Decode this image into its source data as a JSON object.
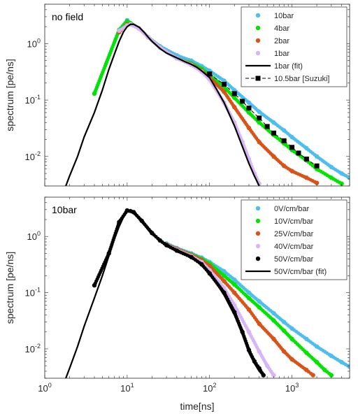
{
  "chart_data": [
    {
      "type": "scatter",
      "annotation": "no field",
      "xlabel": "",
      "ylabel": "spectrum [pe/ns]",
      "xscale": "log",
      "yscale": "log",
      "xlim": [
        1,
        5000
      ],
      "ylim": [
        0.003,
        5
      ],
      "legend_position": "top-right",
      "yticks": [
        {
          "v": 0.01,
          "base": "10",
          "exp": "-2"
        },
        {
          "v": 0.1,
          "base": "10",
          "exp": "-1"
        },
        {
          "v": 1,
          "base": "10",
          "exp": "0"
        }
      ],
      "series": [
        {
          "name": "10bar",
          "kind": "dots",
          "color": "#4dbeee",
          "points": [
            [
              4,
              0.13
            ],
            [
              8,
              1.75
            ],
            [
              10,
              2.6
            ],
            [
              11,
              2.3
            ],
            [
              14,
              1.85
            ],
            [
              18,
              1.3
            ],
            [
              25,
              0.9
            ],
            [
              40,
              0.62
            ],
            [
              60,
              0.5
            ],
            [
              80,
              0.4
            ],
            [
              100,
              0.33
            ],
            [
              150,
              0.22
            ],
            [
              200,
              0.15
            ],
            [
              300,
              0.09
            ],
            [
              400,
              0.062
            ],
            [
              600,
              0.04
            ],
            [
              800,
              0.029
            ],
            [
              1000,
              0.022
            ],
            [
              1500,
              0.014
            ],
            [
              2000,
              0.01
            ],
            [
              3000,
              0.0065
            ],
            [
              4000,
              0.005
            ],
            [
              5000,
              0.0042
            ]
          ]
        },
        {
          "name": "4bar",
          "kind": "dots",
          "color": "#00e400",
          "points": [
            [
              4,
              0.13
            ],
            [
              8,
              1.75
            ],
            [
              10,
              2.5
            ],
            [
              11,
              2.3
            ],
            [
              14,
              1.85
            ],
            [
              18,
              1.3
            ],
            [
              25,
              0.85
            ],
            [
              40,
              0.55
            ],
            [
              60,
              0.45
            ],
            [
              80,
              0.36
            ],
            [
              100,
              0.28
            ],
            [
              150,
              0.17
            ],
            [
              200,
              0.11
            ],
            [
              300,
              0.06
            ],
            [
              400,
              0.04
            ],
            [
              600,
              0.024
            ],
            [
              800,
              0.017
            ],
            [
              1000,
              0.013
            ],
            [
              1500,
              0.0085
            ],
            [
              2000,
              0.006
            ],
            [
              3000,
              0.0042
            ],
            [
              4000,
              0.0033
            ]
          ]
        },
        {
          "name": "2bar",
          "kind": "dots",
          "color": "#d95319",
          "points": [
            [
              8,
              1.6
            ],
            [
              10,
              2.2
            ],
            [
              11,
              2.2
            ],
            [
              14,
              1.85
            ],
            [
              18,
              1.3
            ],
            [
              25,
              0.85
            ],
            [
              40,
              0.55
            ],
            [
              60,
              0.43
            ],
            [
              80,
              0.33
            ],
            [
              100,
              0.25
            ],
            [
              150,
              0.14
            ],
            [
              200,
              0.075
            ],
            [
              300,
              0.032
            ],
            [
              400,
              0.018
            ],
            [
              600,
              0.01
            ],
            [
              800,
              0.0068
            ],
            [
              1000,
              0.0055
            ],
            [
              1500,
              0.0042
            ],
            [
              2000,
              0.0034
            ]
          ]
        },
        {
          "name": "1bar",
          "kind": "dots",
          "color": "#d8b5f5",
          "points": [
            [
              8,
              1.7
            ],
            [
              10,
              2.1
            ],
            [
              11,
              2.2
            ],
            [
              14,
              1.85
            ],
            [
              18,
              1.3
            ],
            [
              25,
              0.85
            ],
            [
              40,
              0.55
            ],
            [
              60,
              0.42
            ],
            [
              80,
              0.32
            ],
            [
              100,
              0.23
            ],
            [
              150,
              0.09
            ],
            [
              200,
              0.04
            ],
            [
              250,
              0.018
            ],
            [
              300,
              0.009
            ],
            [
              350,
              0.005
            ],
            [
              400,
              0.0033
            ]
          ]
        },
        {
          "name": "1bar (fit)",
          "kind": "line",
          "color": "#000000",
          "points": [
            [
              1.8,
              0.003
            ],
            [
              2,
              0.0045
            ],
            [
              2.5,
              0.01
            ],
            [
              3,
              0.022
            ],
            [
              4,
              0.06
            ],
            [
              5,
              0.15
            ],
            [
              6,
              0.35
            ],
            [
              7,
              0.65
            ],
            [
              8,
              1.1
            ],
            [
              9,
              1.6
            ],
            [
              10,
              2.0
            ],
            [
              11,
              2.2
            ],
            [
              12,
              2.2
            ],
            [
              14,
              1.95
            ],
            [
              16,
              1.6
            ],
            [
              18,
              1.3
            ],
            [
              20,
              1.1
            ],
            [
              25,
              0.82
            ],
            [
              30,
              0.68
            ],
            [
              40,
              0.56
            ],
            [
              50,
              0.48
            ],
            [
              60,
              0.43
            ],
            [
              70,
              0.38
            ],
            [
              80,
              0.33
            ],
            [
              100,
              0.25
            ],
            [
              120,
              0.16
            ],
            [
              150,
              0.09
            ],
            [
              200,
              0.035
            ],
            [
              250,
              0.015
            ],
            [
              300,
              0.0075
            ],
            [
              350,
              0.0045
            ],
            [
              400,
              0.003
            ]
          ]
        },
        {
          "name": "10.5bar [Suzuki]",
          "kind": "dashed-squares",
          "color": "#000000",
          "points": [
            [
              100,
              0.29
            ],
            [
              150,
              0.19
            ],
            [
              200,
              0.13
            ],
            [
              250,
              0.095
            ],
            [
              300,
              0.072
            ],
            [
              400,
              0.048
            ],
            [
              500,
              0.034
            ],
            [
              600,
              0.026
            ],
            [
              800,
              0.019
            ],
            [
              1000,
              0.0145
            ],
            [
              1200,
              0.0115
            ],
            [
              1500,
              0.009
            ],
            [
              2000,
              0.0068
            ]
          ]
        }
      ]
    },
    {
      "type": "scatter",
      "annotation": "10bar",
      "xlabel": "time[ns]",
      "ylabel": "spectrum [pe/ns]",
      "xscale": "log",
      "yscale": "log",
      "xlim": [
        1,
        5000
      ],
      "ylim": [
        0.003,
        5
      ],
      "legend_position": "top-right",
      "xticks": [
        {
          "v": 1,
          "base": "10",
          "exp": "0"
        },
        {
          "v": 10,
          "base": "10",
          "exp": "1"
        },
        {
          "v": 100,
          "base": "10",
          "exp": "2"
        },
        {
          "v": 1000,
          "base": "10",
          "exp": "3"
        }
      ],
      "yticks": [
        {
          "v": 0.01,
          "base": "10",
          "exp": "-2"
        },
        {
          "v": 0.1,
          "base": "10",
          "exp": "-1"
        },
        {
          "v": 1,
          "base": "10",
          "exp": "0"
        }
      ],
      "series": [
        {
          "name": "0V/cm/bar",
          "kind": "dots",
          "color": "#4dbeee",
          "points": [
            [
              30,
              0.75
            ],
            [
              40,
              0.62
            ],
            [
              60,
              0.5
            ],
            [
              80,
              0.42
            ],
            [
              100,
              0.35
            ],
            [
              150,
              0.24
            ],
            [
              200,
              0.17
            ],
            [
              300,
              0.1
            ],
            [
              400,
              0.07
            ],
            [
              600,
              0.043
            ],
            [
              800,
              0.03
            ],
            [
              1000,
              0.023
            ],
            [
              1500,
              0.015
            ],
            [
              2000,
              0.011
            ],
            [
              3000,
              0.0075
            ],
            [
              4000,
              0.0058
            ],
            [
              5000,
              0.0048
            ]
          ]
        },
        {
          "name": "10V/cm/bar",
          "kind": "dots",
          "color": "#00e400",
          "points": [
            [
              30,
              0.72
            ],
            [
              40,
              0.6
            ],
            [
              60,
              0.48
            ],
            [
              80,
              0.4
            ],
            [
              100,
              0.33
            ],
            [
              150,
              0.2
            ],
            [
              200,
              0.14
            ],
            [
              300,
              0.08
            ],
            [
              400,
              0.055
            ],
            [
              600,
              0.032
            ],
            [
              800,
              0.021
            ],
            [
              1000,
              0.015
            ],
            [
              1500,
              0.0085
            ],
            [
              2000,
              0.0058
            ],
            [
              2500,
              0.0042
            ],
            [
              3000,
              0.0034
            ]
          ]
        },
        {
          "name": "25V/cm/bar",
          "kind": "dots",
          "color": "#d95319",
          "points": [
            [
              30,
              0.72
            ],
            [
              40,
              0.6
            ],
            [
              60,
              0.47
            ],
            [
              80,
              0.38
            ],
            [
              100,
              0.3
            ],
            [
              150,
              0.16
            ],
            [
              200,
              0.1
            ],
            [
              300,
              0.05
            ],
            [
              400,
              0.028
            ],
            [
              600,
              0.015
            ],
            [
              800,
              0.009
            ],
            [
              1000,
              0.0065
            ],
            [
              1500,
              0.0042
            ],
            [
              1800,
              0.0034
            ]
          ]
        },
        {
          "name": "40V/cm/bar",
          "kind": "dots",
          "color": "#d8b5f5",
          "points": [
            [
              30,
              0.7
            ],
            [
              40,
              0.58
            ],
            [
              60,
              0.45
            ],
            [
              80,
              0.35
            ],
            [
              100,
              0.25
            ],
            [
              150,
              0.12
            ],
            [
              200,
              0.06
            ],
            [
              300,
              0.02
            ],
            [
              400,
              0.009
            ],
            [
              500,
              0.005
            ],
            [
              600,
              0.0034
            ]
          ]
        },
        {
          "name": "50V/cm/bar",
          "kind": "dots",
          "color": "#000000",
          "points": [
            [
              4,
              0.135
            ],
            [
              6,
              0.5
            ],
            [
              8,
              1.8
            ],
            [
              10,
              2.9
            ],
            [
              12,
              2.7
            ],
            [
              15,
              1.9
            ],
            [
              20,
              1.15
            ],
            [
              25,
              0.85
            ],
            [
              30,
              0.7
            ],
            [
              40,
              0.56
            ],
            [
              60,
              0.43
            ],
            [
              80,
              0.32
            ],
            [
              100,
              0.22
            ],
            [
              150,
              0.1
            ],
            [
              200,
              0.045
            ],
            [
              250,
              0.02
            ],
            [
              300,
              0.0095
            ],
            [
              350,
              0.006
            ],
            [
              400,
              0.0045
            ],
            [
              450,
              0.0034
            ]
          ]
        },
        {
          "name": "50V/cm/bar (fit)",
          "kind": "line",
          "color": "#000000",
          "points": [
            [
              1.8,
              0.003
            ],
            [
              2,
              0.0045
            ],
            [
              2.5,
              0.011
            ],
            [
              3,
              0.025
            ],
            [
              4,
              0.08
            ],
            [
              5,
              0.2
            ],
            [
              6,
              0.45
            ],
            [
              7,
              0.9
            ],
            [
              8,
              1.5
            ],
            [
              9,
              2.2
            ],
            [
              10,
              2.8
            ],
            [
              11,
              3.0
            ],
            [
              12,
              2.8
            ],
            [
              14,
              2.2
            ],
            [
              16,
              1.65
            ],
            [
              18,
              1.3
            ],
            [
              20,
              1.1
            ],
            [
              25,
              0.85
            ],
            [
              30,
              0.7
            ],
            [
              40,
              0.56
            ],
            [
              50,
              0.48
            ],
            [
              60,
              0.42
            ],
            [
              80,
              0.32
            ],
            [
              100,
              0.22
            ],
            [
              120,
              0.15
            ],
            [
              150,
              0.09
            ],
            [
              200,
              0.04
            ],
            [
              250,
              0.018
            ],
            [
              300,
              0.0085
            ],
            [
              350,
              0.0055
            ],
            [
              400,
              0.004
            ],
            [
              450,
              0.0033
            ]
          ]
        }
      ]
    }
  ]
}
